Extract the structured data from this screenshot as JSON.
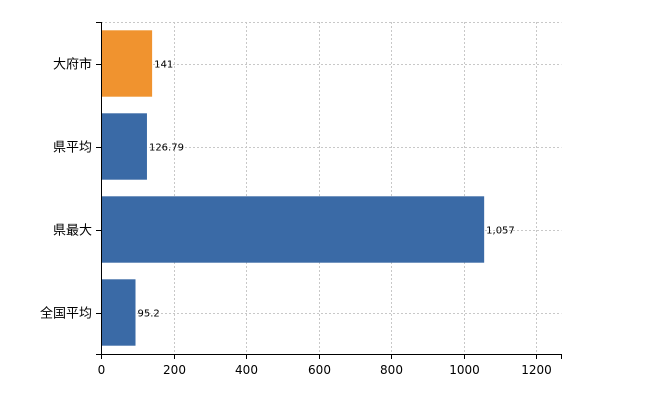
{
  "chart_data": {
    "type": "bar",
    "orientation": "horizontal",
    "categories": [
      "大府市",
      "県平均",
      "県最大",
      "全国平均"
    ],
    "values": [
      141,
      126.79,
      1057,
      95.2
    ],
    "value_labels": [
      "141",
      "126.79",
      "1,057",
      "95.2"
    ],
    "bar_colors": [
      "#f0932f",
      "#3a6aa6",
      "#3a6aa6",
      "#3a6aa6"
    ],
    "title": "",
    "xlabel": "",
    "ylabel": "",
    "xlim": [
      0,
      1270
    ],
    "x_ticks": [
      0,
      200,
      400,
      600,
      800,
      1000,
      1200
    ],
    "x_tick_labels": [
      "0",
      "200",
      "400",
      "600",
      "800",
      "1000",
      "1200"
    ],
    "grid": true,
    "legend": "none"
  }
}
